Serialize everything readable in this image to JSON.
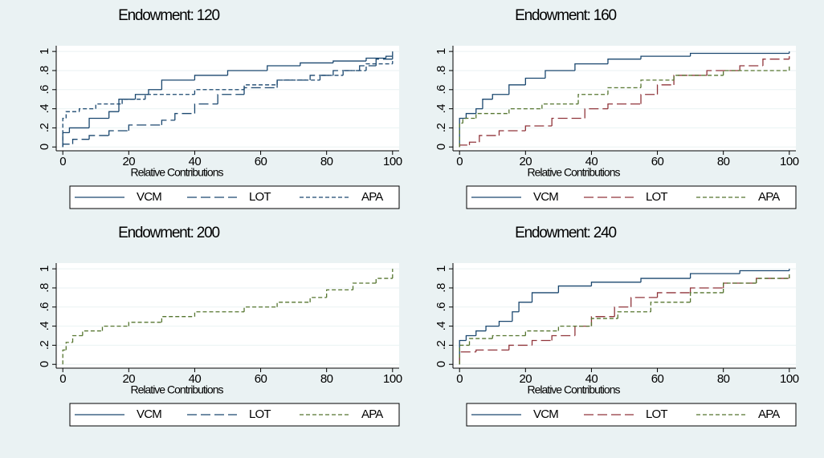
{
  "chart_data": [
    {
      "type": "line",
      "step": true,
      "grid": true,
      "title": "Endowment: 120",
      "xlabel": "Relative Contributions",
      "xlim": [
        -2,
        102
      ],
      "ylim": [
        -0.04,
        1.06
      ],
      "xticks": [
        0,
        20,
        40,
        60,
        80,
        100
      ],
      "yticks": [
        0,
        {
          "value": 0.2,
          "label": ".2"
        },
        {
          "value": 0.4,
          "label": ".4"
        },
        {
          "value": 0.6,
          "label": ".6"
        },
        {
          "value": 0.8,
          "label": ".8"
        },
        1
      ],
      "series": [
        {
          "name": "VCM",
          "color": "#1a476f",
          "dash": "solid",
          "x": [
            0,
            2,
            8,
            14,
            17,
            22,
            26,
            30,
            40,
            50,
            62,
            72,
            82,
            92,
            98,
            100
          ],
          "values": [
            0.15,
            0.2,
            0.3,
            0.37,
            0.5,
            0.55,
            0.6,
            0.7,
            0.75,
            0.8,
            0.85,
            0.88,
            0.9,
            0.93,
            0.95,
            1
          ]
        },
        {
          "name": "LOT",
          "color": "#1a476f",
          "dash": "long",
          "x": [
            0,
            3,
            8,
            14,
            20,
            30,
            34,
            40,
            47,
            55,
            65,
            75,
            82,
            90,
            95,
            100
          ],
          "values": [
            0.03,
            0.08,
            0.12,
            0.17,
            0.23,
            0.28,
            0.35,
            0.45,
            0.55,
            0.62,
            0.7,
            0.75,
            0.8,
            0.85,
            0.92,
            0.95
          ]
        },
        {
          "name": "APA",
          "color": "#1a476f",
          "dash": "short",
          "x": [
            0,
            1,
            5,
            10,
            18,
            25,
            40,
            55,
            65,
            78,
            85,
            92,
            100
          ],
          "values": [
            0.3,
            0.37,
            0.4,
            0.45,
            0.5,
            0.55,
            0.6,
            0.65,
            0.7,
            0.75,
            0.8,
            0.87,
            0.9
          ]
        }
      ]
    },
    {
      "type": "line",
      "step": true,
      "grid": true,
      "title": "Endowment: 160",
      "xlabel": "Relative Contributions",
      "xlim": [
        -2,
        102
      ],
      "ylim": [
        -0.04,
        1.06
      ],
      "xticks": [
        0,
        20,
        40,
        60,
        80,
        100
      ],
      "yticks": [
        0,
        {
          "value": 0.2,
          "label": ".2"
        },
        {
          "value": 0.4,
          "label": ".4"
        },
        {
          "value": 0.6,
          "label": ".6"
        },
        {
          "value": 0.8,
          "label": ".8"
        },
        1
      ],
      "series": [
        {
          "name": "VCM",
          "color": "#1a476f",
          "dash": "solid",
          "x": [
            0,
            2,
            5,
            7,
            10,
            15,
            20,
            26,
            35,
            45,
            55,
            70,
            100
          ],
          "values": [
            0.3,
            0.35,
            0.4,
            0.5,
            0.55,
            0.65,
            0.72,
            0.8,
            0.87,
            0.92,
            0.95,
            0.98,
            1
          ]
        },
        {
          "name": "LOT",
          "color": "#90353b",
          "dash": "long",
          "x": [
            0,
            3,
            6,
            12,
            20,
            28,
            38,
            45,
            55,
            60,
            65,
            75,
            85,
            92,
            100
          ],
          "values": [
            0.02,
            0.05,
            0.12,
            0.17,
            0.22,
            0.3,
            0.4,
            0.45,
            0.55,
            0.65,
            0.75,
            0.8,
            0.85,
            0.92,
            0.95
          ]
        },
        {
          "name": "APA",
          "color": "#55752f",
          "dash": "short",
          "x": [
            0,
            1,
            5,
            15,
            25,
            36,
            45,
            55,
            65,
            80,
            100
          ],
          "values": [
            0.25,
            0.3,
            0.35,
            0.4,
            0.45,
            0.55,
            0.62,
            0.7,
            0.75,
            0.8,
            0.85
          ]
        }
      ]
    },
    {
      "type": "line",
      "step": true,
      "grid": true,
      "title": "Endowment: 200",
      "xlabel": "Relative Contributions",
      "xlim": [
        -2,
        102
      ],
      "ylim": [
        -0.04,
        1.06
      ],
      "xticks": [
        0,
        20,
        40,
        60,
        80,
        100
      ],
      "yticks": [
        0,
        {
          "value": 0.2,
          "label": ".2"
        },
        {
          "value": 0.4,
          "label": ".4"
        },
        {
          "value": 0.6,
          "label": ".6"
        },
        {
          "value": 0.8,
          "label": ".8"
        },
        1
      ],
      "series": [
        {
          "name": "VCM",
          "color": "#1a476f",
          "dash": "solid",
          "x": [],
          "values": []
        },
        {
          "name": "LOT",
          "color": "#1a476f",
          "dash": "long",
          "x": [],
          "values": []
        },
        {
          "name": "APA",
          "color": "#55752f",
          "dash": "short",
          "x": [
            0,
            1,
            3,
            6,
            12,
            20,
            30,
            40,
            55,
            65,
            75,
            80,
            88,
            95,
            100
          ],
          "values": [
            0.15,
            0.23,
            0.3,
            0.35,
            0.4,
            0.44,
            0.5,
            0.55,
            0.6,
            0.65,
            0.7,
            0.78,
            0.85,
            0.9,
            1
          ]
        }
      ]
    },
    {
      "type": "line",
      "step": true,
      "grid": true,
      "title": "Endowment: 240",
      "xlabel": "Relative Contributions",
      "xlim": [
        -2,
        102
      ],
      "ylim": [
        -0.04,
        1.06
      ],
      "xticks": [
        0,
        20,
        40,
        60,
        80,
        100
      ],
      "yticks": [
        0,
        {
          "value": 0.2,
          "label": ".2"
        },
        {
          "value": 0.4,
          "label": ".4"
        },
        {
          "value": 0.6,
          "label": ".6"
        },
        {
          "value": 0.8,
          "label": ".8"
        },
        1
      ],
      "series": [
        {
          "name": "VCM",
          "color": "#1a476f",
          "dash": "solid",
          "x": [
            0,
            2,
            5,
            8,
            12,
            16,
            18,
            22,
            30,
            40,
            55,
            70,
            85,
            100
          ],
          "values": [
            0.25,
            0.3,
            0.35,
            0.4,
            0.45,
            0.55,
            0.65,
            0.75,
            0.82,
            0.86,
            0.9,
            0.95,
            0.98,
            1
          ]
        },
        {
          "name": "LOT",
          "color": "#90353b",
          "dash": "long",
          "x": [
            0,
            5,
            15,
            22,
            28,
            35,
            40,
            47,
            52,
            60,
            70,
            80,
            90,
            100
          ],
          "values": [
            0.13,
            0.15,
            0.2,
            0.25,
            0.3,
            0.4,
            0.5,
            0.6,
            0.7,
            0.75,
            0.8,
            0.85,
            0.9,
            0.92
          ]
        },
        {
          "name": "APA",
          "color": "#55752f",
          "dash": "short",
          "x": [
            0,
            3,
            10,
            20,
            30,
            40,
            48,
            58,
            70,
            80,
            90,
            100
          ],
          "values": [
            0.2,
            0.27,
            0.3,
            0.35,
            0.4,
            0.48,
            0.55,
            0.65,
            0.75,
            0.85,
            0.9,
            0.95
          ]
        }
      ]
    }
  ]
}
